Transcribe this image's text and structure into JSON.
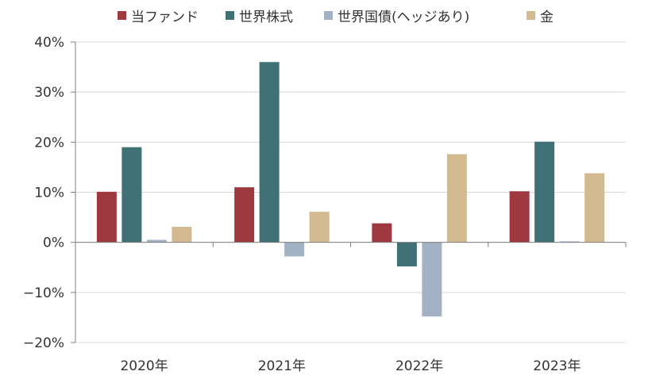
{
  "chart_data": {
    "type": "bar",
    "categories": [
      "2020年",
      "2021年",
      "2022年",
      "2023年"
    ],
    "series": [
      {
        "name": "当ファンド",
        "color": "#9e3a3f",
        "values": [
          10.1,
          11.0,
          3.8,
          10.2
        ]
      },
      {
        "name": "世界株式",
        "color": "#3f7176",
        "values": [
          19.0,
          36.0,
          -4.8,
          20.1
        ]
      },
      {
        "name": "世界国債(ヘッジあり)",
        "color": "#a3b1c4",
        "values": [
          0.5,
          -2.8,
          -14.8,
          0.2
        ]
      },
      {
        "name": "金",
        "color": "#d2b98f",
        "values": [
          3.1,
          6.1,
          17.6,
          13.8
        ]
      }
    ],
    "ylim": [
      -20,
      40
    ],
    "yticks": [
      "-20%",
      "-10%",
      "0%",
      "10%",
      "20%",
      "30%",
      "40%"
    ],
    "ytick_values": [
      -20,
      -10,
      0,
      10,
      20,
      30,
      40
    ],
    "grid": true,
    "legend": "top"
  }
}
